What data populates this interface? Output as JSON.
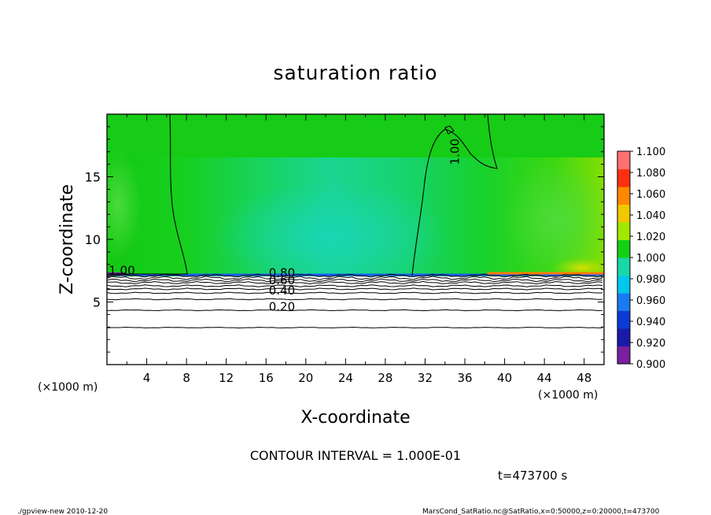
{
  "chart_data": {
    "type": "heatmap",
    "title": "saturation ratio",
    "xlabel": "X-coordinate",
    "ylabel": "Z-coordinate",
    "x_unit_left": "(×1000 m)",
    "x_unit_right": "(×1000 m)",
    "xlim": [
      0,
      50
    ],
    "ylim": [
      0,
      20
    ],
    "x_ticks": [
      4,
      8,
      12,
      16,
      20,
      24,
      28,
      32,
      36,
      40,
      44,
      48
    ],
    "y_ticks": [
      5,
      10,
      15
    ],
    "colorbar": {
      "min": 0.9,
      "max": 1.1,
      "labels": [
        "1.100",
        "1.080",
        "1.060",
        "1.040",
        "1.020",
        "1.000",
        "0.980",
        "0.960",
        "0.940",
        "0.920",
        "0.900"
      ],
      "colors": [
        "#7a1fa0",
        "#1a1aa8",
        "#0a3ad8",
        "#1a7af0",
        "#00c8ec",
        "#18d8a8",
        "#14d014",
        "#a0e800",
        "#f0c800",
        "#ff8800",
        "#ff3010",
        "#ff7070"
      ]
    },
    "contour_labels": [
      {
        "text": "1.00",
        "x": 35.4,
        "z": 17.0,
        "angle": -90
      },
      {
        "text": "1.00",
        "x": 1.5,
        "z": 7.2,
        "angle": 0
      },
      {
        "text": "0.80",
        "x": 17.6,
        "z": 7.0,
        "angle": 0
      },
      {
        "text": "0.60",
        "x": 17.6,
        "z": 6.4,
        "angle": 0
      },
      {
        "text": "0.40",
        "x": 17.6,
        "z": 5.6,
        "angle": 0
      },
      {
        "text": "0.20",
        "x": 17.6,
        "z": 4.3,
        "angle": 0
      }
    ],
    "contour_interval_text": "CONTOUR INTERVAL = 1.000E-01",
    "time_text": "t=473700 s"
  },
  "footer": {
    "left": "./gpview-new   2010-12-20",
    "right": "MarsCond_SatRatio.nc@SatRatio,x=0:50000,z=0:20000,t=473700"
  }
}
